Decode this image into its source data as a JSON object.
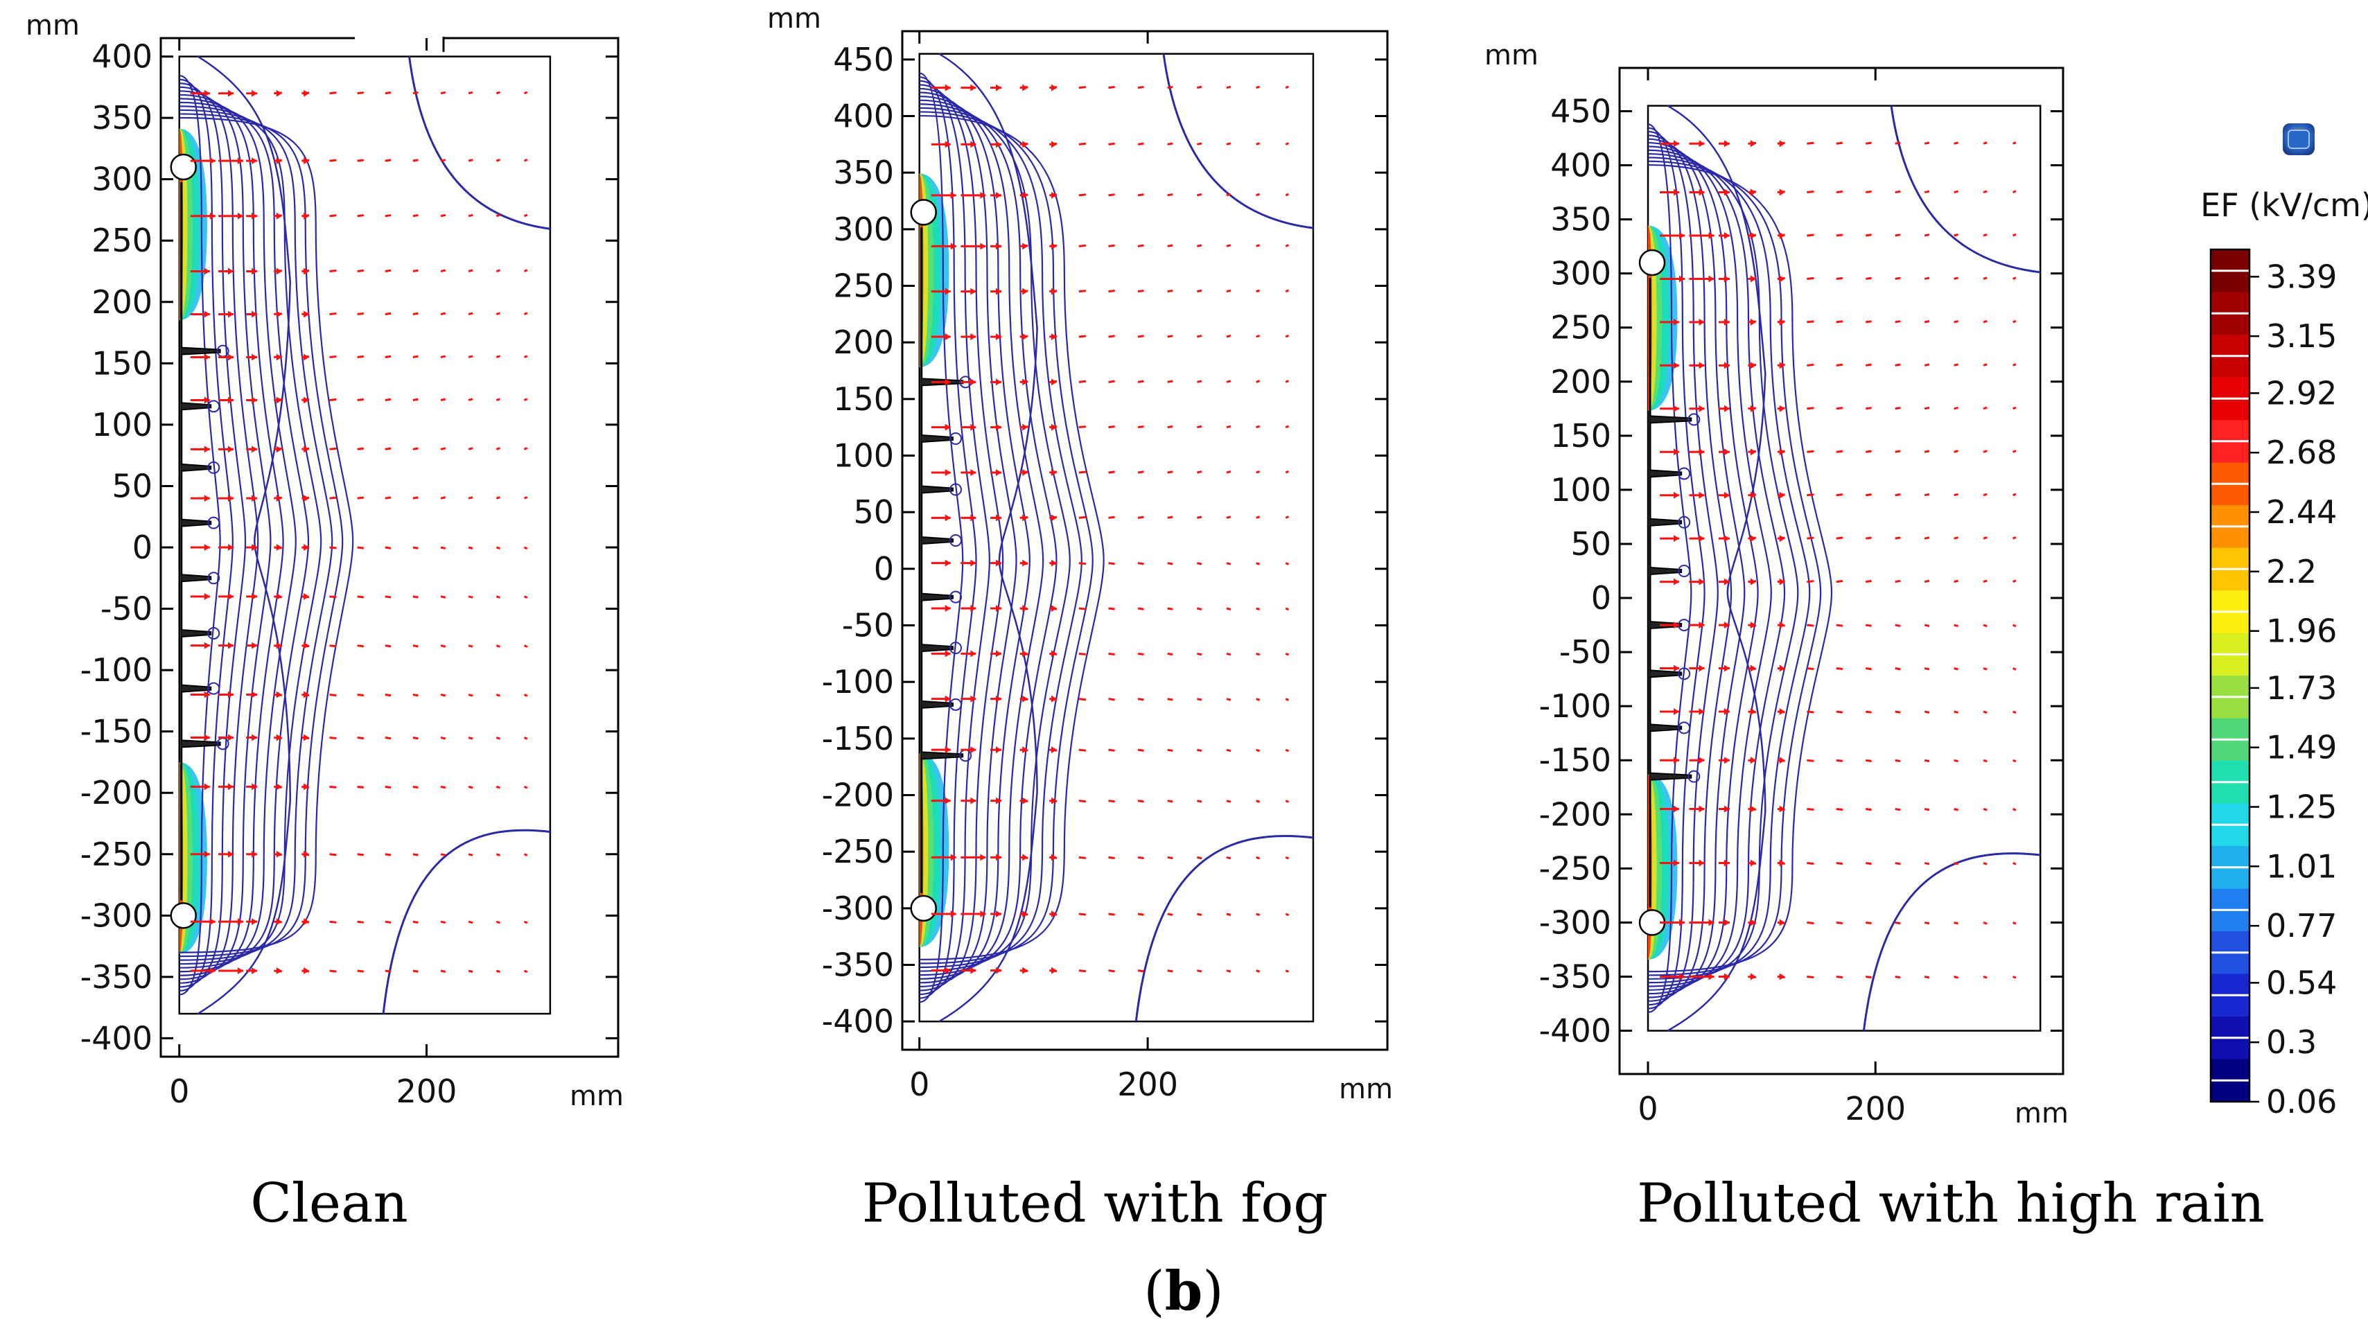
{
  "figure": {
    "panel_tag_open": "(",
    "panel_tag_letter": "b",
    "panel_tag_close": ")"
  },
  "chart_data": [
    {
      "type": "contour",
      "title": "Clean",
      "xlabel": "mm",
      "ylabel": "mm",
      "xlim": [
        -15,
        355
      ],
      "ylim": [
        -415,
        415
      ],
      "xticks": [
        0,
        200
      ],
      "yticks": [
        400,
        350,
        300,
        250,
        200,
        150,
        100,
        50,
        0,
        -50,
        -100,
        -150,
        -200,
        -250,
        -300,
        -350,
        -400
      ],
      "domain_x": [
        0,
        300
      ],
      "domain_y": [
        -380,
        400
      ],
      "sheds_y": [
        160,
        115,
        65,
        20,
        -25,
        -70,
        -115,
        -160
      ],
      "electrode_y": [
        310,
        -300
      ],
      "vector_rows_y": [
        370,
        315,
        270,
        225,
        190,
        155,
        120,
        80,
        40,
        0,
        -40,
        -80,
        -120,
        -155,
        -195,
        -250,
        -305,
        -345
      ]
    },
    {
      "type": "contour",
      "title": "Polluted with fog",
      "xlabel": "mm",
      "ylabel": "mm",
      "xlim": [
        -15,
        410
      ],
      "ylim": [
        -425,
        475
      ],
      "xticks": [
        0,
        200
      ],
      "yticks": [
        450,
        400,
        350,
        300,
        250,
        200,
        150,
        100,
        50,
        0,
        -50,
        -100,
        -150,
        -200,
        -250,
        -300,
        -350,
        -400
      ],
      "domain_x": [
        0,
        345
      ],
      "domain_y": [
        -400,
        455
      ],
      "sheds_y": [
        165,
        115,
        70,
        25,
        -25,
        -70,
        -120,
        -165
      ],
      "electrode_y": [
        315,
        -300
      ],
      "vector_rows_y": [
        425,
        375,
        330,
        285,
        245,
        205,
        165,
        125,
        85,
        45,
        5,
        -35,
        -75,
        -115,
        -160,
        -205,
        -255,
        -305,
        -355
      ]
    },
    {
      "type": "contour",
      "title": "Polluted with high rain",
      "xlabel": "mm",
      "ylabel": "mm",
      "xlim": [
        -25,
        365
      ],
      "ylim": [
        -440,
        490
      ],
      "xticks": [
        0,
        200
      ],
      "yticks": [
        450,
        400,
        350,
        300,
        250,
        200,
        150,
        100,
        50,
        0,
        -50,
        -100,
        -150,
        -200,
        -250,
        -300,
        -350,
        -400
      ],
      "domain_x": [
        0,
        345
      ],
      "domain_y": [
        -400,
        455
      ],
      "sheds_y": [
        165,
        115,
        70,
        25,
        -25,
        -70,
        -120,
        -165
      ],
      "electrode_y": [
        310,
        -300
      ],
      "vector_rows_y": [
        420,
        375,
        335,
        295,
        255,
        215,
        175,
        135,
        95,
        55,
        15,
        -25,
        -65,
        -105,
        -150,
        -195,
        -245,
        -300,
        -350
      ]
    }
  ],
  "colorbar": {
    "title": "EF (kV/cm)",
    "tick_labels": [
      "3.39",
      "3.15",
      "2.92",
      "2.68",
      "2.44",
      "2.2",
      "1.96",
      "1.73",
      "1.49",
      "1.25",
      "1.01",
      "0.77",
      "0.54",
      "0.3",
      "0.06"
    ],
    "range": [
      0.06,
      3.5
    ],
    "colors": [
      "#7a0000",
      "#a00000",
      "#c80000",
      "#e60000",
      "#ff2020",
      "#ff5a00",
      "#ff9000",
      "#ffc400",
      "#ffef10",
      "#d8ef20",
      "#9ae040",
      "#50d878",
      "#20e0b0",
      "#20d8e8",
      "#20b0f0",
      "#2080f0",
      "#2050e0",
      "#1828d0",
      "#1010b0",
      "#000080"
    ],
    "icon": "comsol-logo-icon"
  },
  "styles": {
    "contour_color": "#2a2aa8",
    "vector_color": "#ff1010",
    "frame_color": "#000000"
  }
}
